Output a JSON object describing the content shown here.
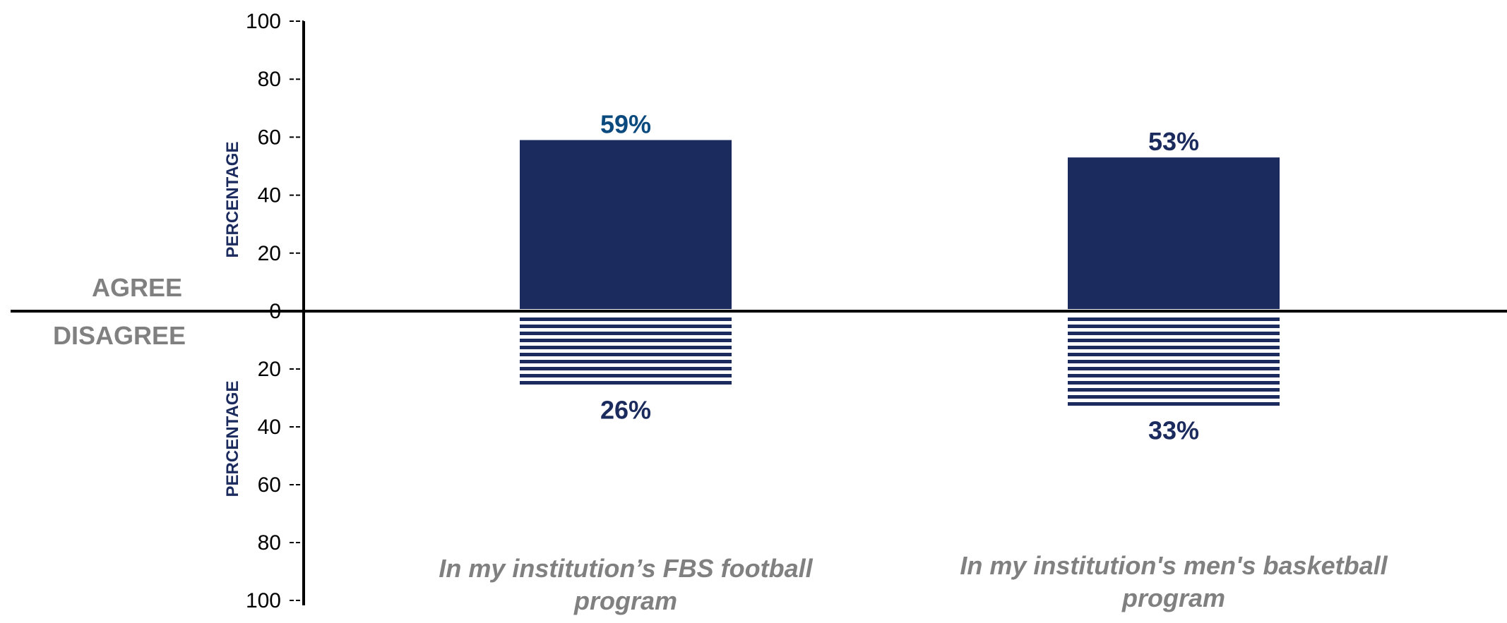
{
  "chart_data": {
    "type": "bar",
    "categories": [
      [
        "In my institution’s FBS football",
        "program"
      ],
      [
        "In my institution's men's basketball",
        "program"
      ]
    ],
    "series": [
      {
        "name": "AGREE",
        "values": [
          59,
          53
        ],
        "labels": [
          "59%",
          "53%"
        ]
      },
      {
        "name": "DISAGREE",
        "values": [
          26,
          33
        ],
        "labels": [
          "26%",
          "33%"
        ]
      }
    ],
    "upper_label": "AGREE",
    "lower_label": "DISAGREE",
    "ylabel_upper": "PERCENTAGE",
    "ylabel_lower": "PERCENTAGE",
    "yticks_upper": [
      "100",
      "80",
      "60",
      "40",
      "20",
      "0"
    ],
    "yticks_lower": [
      "20",
      "40",
      "60",
      "80",
      "100"
    ],
    "ylim": [
      -100,
      100
    ],
    "grid": false,
    "colors": {
      "bar": "#1c2b5e",
      "value_label_agree_first": "#0b4a7e",
      "value_label": "#1c2b5e",
      "axis_title": "#1c2b5e",
      "category_text": "#808080"
    }
  }
}
